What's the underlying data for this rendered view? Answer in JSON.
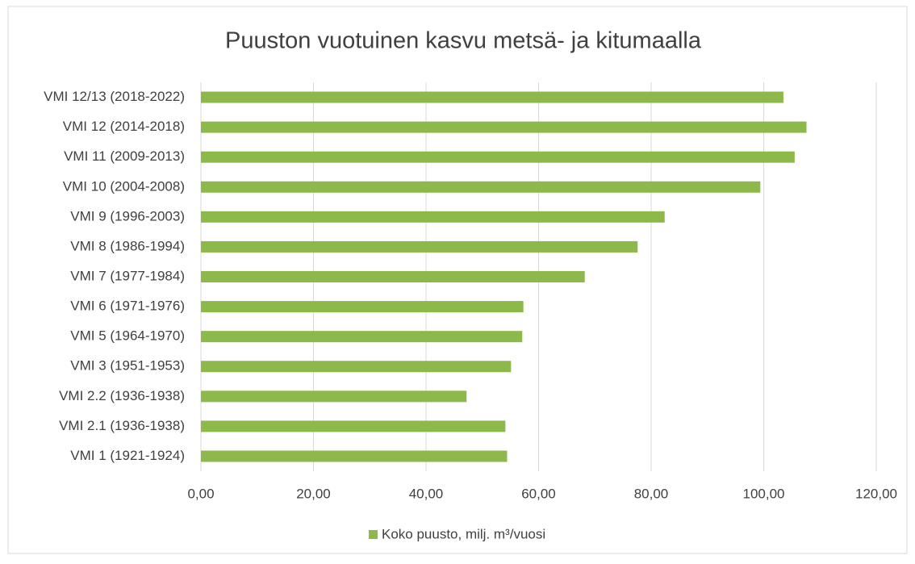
{
  "chart_data": {
    "type": "bar",
    "orientation": "horizontal",
    "title": "Puuston vuotuinen kasvu metsä- ja kitumaalla",
    "categories": [
      "VMI 12/13 (2018-2022)",
      "VMI 12 (2014-2018)",
      "VMI 11 (2009-2013)",
      "VMI 10 (2004-2008)",
      "VMI 9 (1996-2003)",
      "VMI 8 (1986-1994)",
      "VMI 7 (1977-1984)",
      "VMI 6 (1971-1976)",
      "VMI 5 (1964-1970)",
      "VMI 3 (1951-1953)",
      "VMI 2.2 (1936-1938)",
      "VMI 2.1 (1936-1938)",
      "VMI 1 (1921-1924)"
    ],
    "series": [
      {
        "name": "Koko puusto, milj. m³/vuosi",
        "color": "#8db84a",
        "values": [
          103.5,
          107.6,
          105.5,
          99.4,
          82.4,
          77.6,
          68.2,
          57.3,
          57.1,
          55.1,
          47.2,
          54.1,
          54.4
        ]
      }
    ],
    "xlim": [
      0,
      120
    ],
    "xticks": [
      {
        "value": 0,
        "label": "0,00"
      },
      {
        "value": 20,
        "label": "20,00"
      },
      {
        "value": 40,
        "label": "40,00"
      },
      {
        "value": 60,
        "label": "60,00"
      },
      {
        "value": 80,
        "label": "80,00"
      },
      {
        "value": 100,
        "label": "100,00"
      },
      {
        "value": 120,
        "label": "120,00"
      }
    ],
    "grid": true,
    "legend": "bottom"
  }
}
